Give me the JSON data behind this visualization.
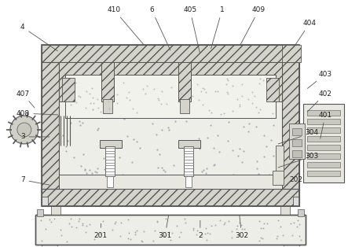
{
  "figsize": [
    4.43,
    3.14
  ],
  "dpi": 100,
  "lc": "#555555",
  "hc": "#999999",
  "fc_hatch": "#d4d4cc",
  "fc_inner": "#f0f0eb",
  "fc_concrete": "#eeeee8",
  "fc_white": "#ffffff",
  "fc_motor": "#e0e0d8"
}
